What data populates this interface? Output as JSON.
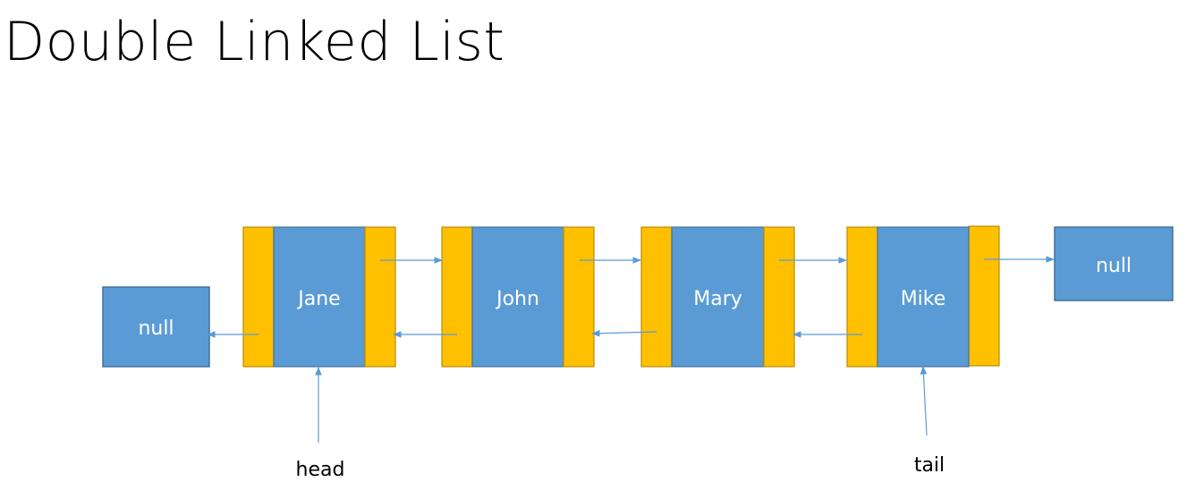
{
  "title": "Double Linked List",
  "nodes": [
    {
      "name": "Jane"
    },
    {
      "name": "John"
    },
    {
      "name": "Mary"
    },
    {
      "name": "Mike"
    }
  ],
  "null_left": "null",
  "null_right": "null",
  "pointers": {
    "head": "head",
    "tail": "tail"
  },
  "colors": {
    "node_fill": "#5B9BD5",
    "node_stroke": "#41719C",
    "pointer_cell_fill": "#FFC000",
    "pointer_cell_stroke": "#BC8C00",
    "arrow": "#5B9BD5"
  }
}
